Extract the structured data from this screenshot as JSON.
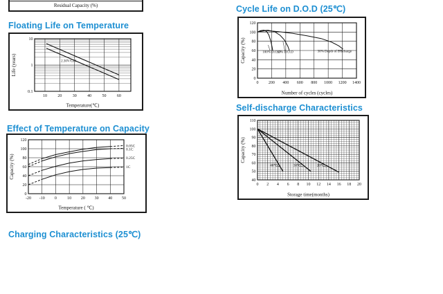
{
  "page": {
    "background_color": "#ffffff",
    "title_color": "#1d8fd2",
    "line_color": "#1a1a1a"
  },
  "partial_chart": {
    "axis_label": "Residual Capacity (%)"
  },
  "sections": {
    "charging_title": "Charging Characteristics (25℃)"
  },
  "chart_data": [
    {
      "id": "floating_life",
      "type": "line",
      "title": "Floating Life on Temperature",
      "xlabel": "Temperature(℃)",
      "ylabel": "Life (years)",
      "xlim": [
        3,
        68
      ],
      "ylim": [
        0.1,
        10
      ],
      "yscale": "log",
      "xticks": [
        10,
        20,
        30,
        40,
        50,
        60
      ],
      "yticks": [
        0.1,
        1,
        10
      ],
      "ytick_labels": [
        "0.1",
        "1",
        "10"
      ],
      "yminor": [
        0.2,
        0.3,
        0.4,
        0.5,
        0.6,
        0.7,
        0.8,
        0.9,
        2,
        3,
        4,
        5,
        6,
        7,
        8,
        9
      ],
      "grid": "major-x, log-minor-y",
      "series": [
        {
          "name": "float-life-band-upper",
          "width": 1.1,
          "points": [
            [
              11,
              6.5
            ],
            [
              60,
              0.42
            ]
          ]
        },
        {
          "name": "float-life-band-lower",
          "width": 1.1,
          "points": [
            [
              11,
              4.3
            ],
            [
              60,
              0.28
            ]
          ]
        }
      ],
      "annotations": [
        {
          "text": "2.30V/Cell",
          "x": 26,
          "y": 1.3,
          "size": 5
        }
      ]
    },
    {
      "id": "cycle_life",
      "type": "line",
      "title": "Cycle Life on D.O.D (25℃)",
      "xlabel": "Number of cycles (cycles)",
      "ylabel": "Capacity  (%)",
      "xlim": [
        0,
        1400
      ],
      "ylim": [
        0,
        120
      ],
      "xticks": [
        0,
        200,
        400,
        600,
        800,
        1000,
        1200,
        1400
      ],
      "yticks": [
        0,
        20,
        40,
        60,
        80,
        100,
        120
      ],
      "grid": "major",
      "series": [
        {
          "name": "100% D.O.D",
          "points": [
            [
              0,
              100
            ],
            [
              40,
              103
            ],
            [
              90,
              104
            ],
            [
              130,
              101
            ],
            [
              160,
              94
            ],
            [
              185,
              82
            ],
            [
              205,
              69
            ],
            [
              215,
              60
            ]
          ]
        },
        {
          "name": "50% D.O.D",
          "points": [
            [
              0,
              100
            ],
            [
              60,
              103
            ],
            [
              150,
              104
            ],
            [
              240,
              101
            ],
            [
              320,
              93
            ],
            [
              380,
              83
            ],
            [
              430,
              69
            ],
            [
              450,
              60
            ]
          ]
        },
        {
          "name": "30% Depth of Discharge",
          "points": [
            [
              0,
              100
            ],
            [
              120,
              103
            ],
            [
              300,
              101
            ],
            [
              500,
              97
            ],
            [
              700,
              92
            ],
            [
              900,
              86
            ],
            [
              1050,
              78
            ],
            [
              1150,
              70
            ],
            [
              1210,
              63
            ]
          ]
        }
      ],
      "annotations": [
        {
          "text": "100% D.O.D",
          "x": 200,
          "y": 55,
          "size": 5
        },
        {
          "text": "50% D.O.D",
          "x": 390,
          "y": 55,
          "size": 5
        },
        {
          "text": "30% Depth of  Discharge",
          "x": 1090,
          "y": 56,
          "size": 5
        }
      ],
      "leaders": [
        [
          150,
          72,
          180,
          59
        ],
        [
          360,
          80,
          388,
          59
        ],
        [
          1205,
          62,
          1145,
          59
        ]
      ]
    },
    {
      "id": "temp_capacity",
      "type": "line",
      "title": "Effect of Temperature on Capacity",
      "xlabel": "Temperature ( ℃)",
      "ylabel": "Capacity (%)",
      "xlim": [
        -20,
        50
      ],
      "ylim": [
        0,
        120
      ],
      "xticks": [
        -20,
        -10,
        0,
        10,
        20,
        30,
        40,
        50
      ],
      "xtick_labels": [
        "-20",
        "-10",
        "0",
        "10",
        "20",
        "30",
        "40",
        "50"
      ],
      "yticks": [
        0,
        20,
        40,
        60,
        80,
        100,
        120
      ],
      "grid": "major",
      "series": [
        {
          "name": "0.05C",
          "segments": [
            {
              "dash": true,
              "points": [
                [
                  -20,
                  65
                ],
                [
                  -10,
                  78
                ]
              ]
            },
            {
              "dash": false,
              "points": [
                [
                  -10,
                  78
                ],
                [
                  0,
                  87
                ],
                [
                  10,
                  93
                ],
                [
                  20,
                  99
                ],
                [
                  30,
                  103
                ],
                [
                  40,
                  105
                ]
              ]
            },
            {
              "dash": true,
              "points": [
                [
                  40,
                  105
                ],
                [
                  50,
                  107
                ]
              ]
            }
          ]
        },
        {
          "name": "0.1C",
          "segments": [
            {
              "dash": true,
              "points": [
                [
                  -20,
                  60
                ],
                [
                  -10,
                  73
                ]
              ]
            },
            {
              "dash": false,
              "points": [
                [
                  -10,
                  73
                ],
                [
                  0,
                  82
                ],
                [
                  10,
                  89
                ],
                [
                  20,
                  94
                ],
                [
                  30,
                  98
                ],
                [
                  40,
                  100
                ]
              ]
            },
            {
              "dash": true,
              "points": [
                [
                  40,
                  100
                ],
                [
                  50,
                  101
                ]
              ]
            }
          ]
        },
        {
          "name": "0.25C",
          "segments": [
            {
              "dash": true,
              "points": [
                [
                  -20,
                  40
                ],
                [
                  -10,
                  52
                ]
              ]
            },
            {
              "dash": false,
              "points": [
                [
                  -10,
                  52
                ],
                [
                  0,
                  61
                ],
                [
                  10,
                  68
                ],
                [
                  20,
                  73
                ],
                [
                  30,
                  76
                ],
                [
                  40,
                  78
                ]
              ]
            },
            {
              "dash": true,
              "points": [
                [
                  40,
                  78
                ],
                [
                  50,
                  79
                ]
              ]
            }
          ]
        },
        {
          "name": "1C",
          "segments": [
            {
              "dash": true,
              "points": [
                [
                  -20,
                  20
                ],
                [
                  -10,
                  32
                ]
              ]
            },
            {
              "dash": false,
              "points": [
                [
                  -10,
                  32
                ],
                [
                  0,
                  42
                ],
                [
                  10,
                  49
                ],
                [
                  20,
                  54
                ],
                [
                  30,
                  57
                ],
                [
                  40,
                  58
                ]
              ]
            },
            {
              "dash": true,
              "points": [
                [
                  40,
                  58
                ],
                [
                  50,
                  59
                ]
              ]
            }
          ]
        }
      ],
      "annotations": [
        {
          "text": "0.05C",
          "x": 51.5,
          "y": 104,
          "anchor": "start",
          "size": 5.5
        },
        {
          "text": "0.1C",
          "x": 51.5,
          "y": 96,
          "anchor": "start",
          "size": 5.5
        },
        {
          "text": "0.25C",
          "x": 51.5,
          "y": 77,
          "anchor": "start",
          "size": 5.5
        },
        {
          "text": "1C",
          "x": 51.5,
          "y": 57,
          "anchor": "start",
          "size": 5.5
        }
      ]
    },
    {
      "id": "self_discharge",
      "type": "line",
      "title": "Self-discharge Characteristics",
      "xlabel": "Storage time(months)",
      "ylabel": "Capacity (%)",
      "xlim": [
        0,
        20
      ],
      "ylim": [
        40,
        110
      ],
      "xticks": [
        0,
        2,
        4,
        6,
        8,
        10,
        12,
        14,
        16,
        18,
        20
      ],
      "yticks": [
        40,
        50,
        60,
        70,
        80,
        90,
        100,
        110
      ],
      "minor": {
        "x_step": 0.5,
        "y_step": 2.5
      },
      "grid": "major+minor",
      "series": [
        {
          "name": "40℃",
          "width": 1.3,
          "points": [
            [
              0,
              100
            ],
            [
              5,
              50
            ]
          ]
        },
        {
          "name": "30℃",
          "width": 1.3,
          "points": [
            [
              0,
              100
            ],
            [
              10.5,
              50
            ]
          ]
        },
        {
          "name": "20℃",
          "width": 1.3,
          "points": [
            [
              0,
              100
            ],
            [
              16,
              49
            ]
          ]
        }
      ],
      "annotations": [
        {
          "text": "40℃",
          "x": 3.2,
          "y": 56,
          "size": 5
        },
        {
          "text": "30℃",
          "x": 7.8,
          "y": 56,
          "size": 5
        },
        {
          "text": "20℃",
          "x": 12.4,
          "y": 56,
          "size": 5
        }
      ],
      "leaders": [
        [
          3.8,
          56.5,
          4.35,
          55.4
        ],
        [
          8.4,
          56.5,
          9.0,
          55.3
        ],
        [
          13.0,
          56.5,
          13.6,
          55.0
        ]
      ]
    }
  ]
}
